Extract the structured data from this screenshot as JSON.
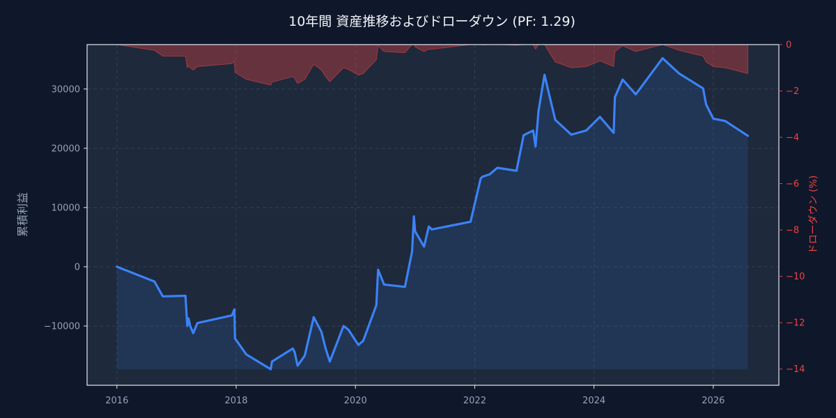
{
  "chart_data": {
    "type": "line",
    "title": "10年間 資産推移およびドローダウン (PF: 1.29)",
    "xlabel": "",
    "ylabel": "累積利益",
    "y2label": "ドローダウン (%)",
    "xlim": [
      2015.5,
      2027.1
    ],
    "ylim": [
      -20000,
      37500
    ],
    "y2lim": [
      -14.7,
      0
    ],
    "x_ticks": [
      2016,
      2018,
      2020,
      2022,
      2024,
      2026
    ],
    "y_ticks": [
      -10000,
      0,
      10000,
      20000,
      30000
    ],
    "y_tick_labels": [
      "−10000",
      "0",
      "10000",
      "20000",
      "30000"
    ],
    "y2_ticks": [
      0,
      -2,
      -4,
      -6,
      -8,
      -10,
      -12,
      -14
    ],
    "y2_tick_labels": [
      "0",
      "−2",
      "−4",
      "−6",
      "−8",
      "−10",
      "−12",
      "−14"
    ],
    "grid": true,
    "colors": {
      "equity": "#3b82f6",
      "drawdown": "#ef4444",
      "background": "#0f172a",
      "plot": "#1e293b"
    },
    "series": [
      {
        "name": "",
        "axis": "left",
        "x": [
          2016.0,
          2016.63,
          2016.77,
          2017.15,
          2017.18,
          2017.2,
          2017.23,
          2017.28,
          2017.35,
          2017.93,
          2017.97,
          2017.98,
          2018.17,
          2018.58,
          2018.6,
          2018.95,
          2018.98,
          2019.03,
          2019.15,
          2019.3,
          2019.43,
          2019.5,
          2019.57,
          2019.8,
          2019.88,
          2020.05,
          2020.13,
          2020.35,
          2020.38,
          2020.48,
          2020.83,
          2020.95,
          2020.98,
          2021.0,
          2021.15,
          2021.23,
          2021.28,
          2021.93,
          2022.1,
          2022.13,
          2022.25,
          2022.38,
          2022.7,
          2022.82,
          2022.98,
          2023.02,
          2023.07,
          2023.17,
          2023.35,
          2023.62,
          2023.87,
          2024.1,
          2024.33,
          2024.35,
          2024.48,
          2024.7,
          2025.15,
          2025.43,
          2025.83,
          2025.88,
          2026.0,
          2026.2,
          2026.58
        ],
        "values": [
          0,
          -2500,
          -5000,
          -4900,
          -10000,
          -8700,
          -10000,
          -11200,
          -9500,
          -8200,
          -7200,
          -12100,
          -14800,
          -17300,
          -16000,
          -13800,
          -14400,
          -16700,
          -15000,
          -8500,
          -11000,
          -13800,
          -16000,
          -10000,
          -10600,
          -13200,
          -12500,
          -6500,
          -500,
          -3000,
          -3400,
          2600,
          8500,
          6000,
          3400,
          6800,
          6300,
          7600,
          14900,
          15200,
          15600,
          16700,
          16200,
          22200,
          23000,
          20300,
          26300,
          32400,
          24800,
          22300,
          23000,
          25300,
          22600,
          28600,
          31600,
          29100,
          35200,
          32600,
          30100,
          27400,
          25000,
          24600,
          22100
        ]
      },
      {
        "name": "",
        "axis": "right",
        "x": [
          2016.0,
          2016.63,
          2016.77,
          2017.15,
          2017.18,
          2017.2,
          2017.23,
          2017.28,
          2017.35,
          2017.93,
          2017.97,
          2017.98,
          2018.17,
          2018.58,
          2018.6,
          2018.95,
          2018.98,
          2019.03,
          2019.15,
          2019.3,
          2019.43,
          2019.5,
          2019.57,
          2019.8,
          2019.88,
          2020.05,
          2020.13,
          2020.35,
          2020.38,
          2020.48,
          2020.83,
          2020.95,
          2020.98,
          2021.0,
          2021.15,
          2021.23,
          2021.28,
          2021.93,
          2022.1,
          2022.13,
          2022.25,
          2022.38,
          2022.7,
          2022.82,
          2022.98,
          2023.02,
          2023.07,
          2023.17,
          2023.35,
          2023.62,
          2023.87,
          2024.1,
          2024.33,
          2024.35,
          2024.48,
          2024.7,
          2025.15,
          2025.43,
          2025.83,
          2025.88,
          2026.0,
          2026.2,
          2026.58
        ],
        "values": [
          0,
          -0.25,
          -0.5,
          -0.5,
          -1.0,
          -0.9,
          -1.0,
          -1.1,
          -0.95,
          -0.82,
          -0.72,
          -1.2,
          -1.5,
          -1.75,
          -1.62,
          -1.38,
          -1.45,
          -1.68,
          -1.5,
          -0.85,
          -1.1,
          -1.38,
          -1.6,
          -1.0,
          -1.07,
          -1.32,
          -1.25,
          -0.65,
          -0.05,
          -0.3,
          -0.35,
          0,
          0,
          -0.1,
          -0.3,
          -0.2,
          -0.2,
          0,
          0,
          -0.02,
          0,
          0,
          -0.03,
          0,
          0,
          -0.2,
          0,
          0,
          -0.75,
          -1.0,
          -0.95,
          -0.7,
          -0.95,
          -0.3,
          -0.05,
          -0.3,
          0,
          -0.25,
          -0.5,
          -0.75,
          -0.95,
          -1.0,
          -1.25
        ]
      }
    ]
  }
}
